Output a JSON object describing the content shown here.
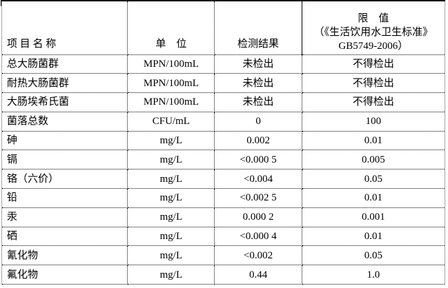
{
  "table": {
    "header": {
      "item_name": "项 目 名 称",
      "unit": "单　位",
      "result": "检测结果",
      "limit_line1": "限　值",
      "limit_line2": "（《生活饮用水卫生标准》",
      "limit_line3": "GB5749-2006）"
    },
    "rows": [
      {
        "name": "总大肠菌群",
        "unit": "MPN/100mL",
        "result": "未检出",
        "limit": "不得检出"
      },
      {
        "name": "耐热大肠菌群",
        "unit": "MPN/100mL",
        "result": "未检出",
        "limit": "不得检出"
      },
      {
        "name": "大肠埃希氏菌",
        "unit": "MPN/100mL",
        "result": "未检出",
        "limit": "不得检出"
      },
      {
        "name": "菌落总数",
        "unit": "CFU/mL",
        "result": "0",
        "limit": "100"
      },
      {
        "name": "砷",
        "unit": "mg/L",
        "result": "0.002",
        "limit": "0.01"
      },
      {
        "name": "镉",
        "unit": "mg/L",
        "result": "<0.000 5",
        "limit": "0.005"
      },
      {
        "name": "铬（六价）",
        "unit": "mg/L",
        "result": "<0.004",
        "limit": "0.05"
      },
      {
        "name": "铅",
        "unit": "mg/L",
        "result": "<0.002 5",
        "limit": "0.01"
      },
      {
        "name": "汞",
        "unit": "mg/L",
        "result": "0.000 2",
        "limit": "0.001"
      },
      {
        "name": "硒",
        "unit": "mg/L",
        "result": "<0.000 4",
        "limit": "0.01"
      },
      {
        "name": "氰化物",
        "unit": "mg/L",
        "result": "<0.002",
        "limit": "0.05"
      },
      {
        "name": "氟化物",
        "unit": "mg/L",
        "result": "0.44",
        "limit": "1.0"
      }
    ]
  },
  "colors": {
    "background": "#ffffff",
    "text": "#000000",
    "grid_dotted": "#000000",
    "outer_side_border": "#a6a6a6",
    "top_border": "#000000"
  }
}
